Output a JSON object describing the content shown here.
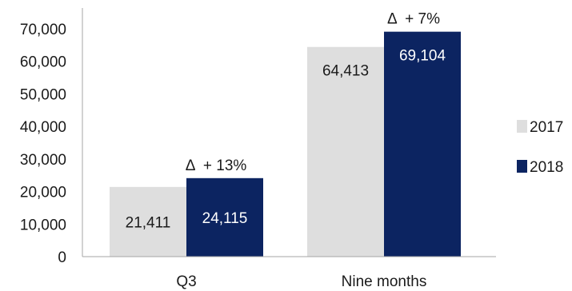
{
  "chart_data": {
    "type": "bar",
    "title": "",
    "xlabel": "",
    "ylabel": "",
    "categories": [
      "Q3",
      "Nine months"
    ],
    "series": [
      {
        "name": "2017",
        "values": [
          21411,
          64413
        ],
        "labels": [
          "21,411",
          "64,413"
        ],
        "color": "#dedede",
        "label_color": "#1a1a1a"
      },
      {
        "name": "2018",
        "values": [
          24115,
          69104
        ],
        "labels": [
          "24,115",
          "69,104"
        ],
        "color": "#0c2461",
        "label_color": "#ffffff"
      }
    ],
    "annotations": [
      {
        "category": "Q3",
        "text": "Δ  + 13%"
      },
      {
        "category": "Nine months",
        "text": "Δ  + 7%"
      }
    ],
    "ylim": [
      0,
      70000
    ],
    "yticks": [
      0,
      10000,
      20000,
      30000,
      40000,
      50000,
      60000,
      70000
    ],
    "ytick_labels": [
      "0",
      "10,000",
      "20,000",
      "30,000",
      "40,000",
      "50,000",
      "60,000",
      "70,000"
    ],
    "grid": false,
    "legend_position": "right"
  }
}
